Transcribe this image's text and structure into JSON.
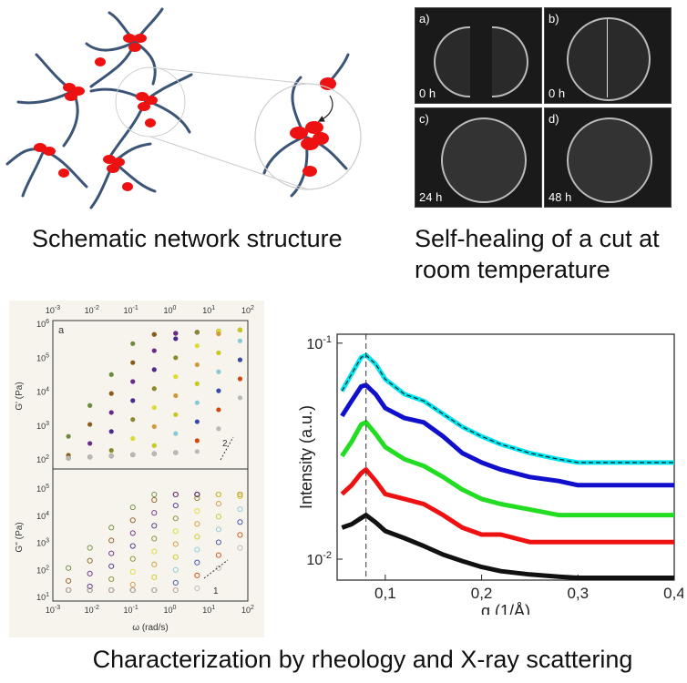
{
  "captions": {
    "schematic": "Schematic network structure",
    "self_healing": "Self-healing of a cut at room temperature",
    "characterization": "Characterization by rheology and X-ray scattering"
  },
  "photos": [
    {
      "panel": "a)",
      "time": "0 h"
    },
    {
      "panel": "b)",
      "time": "0 h"
    },
    {
      "panel": "c)",
      "time": "24 h"
    },
    {
      "panel": "d)",
      "time": "48 h"
    }
  ],
  "colors": {
    "polymer": "#3c5577",
    "sticker": "#ee1111"
  },
  "rheology": {
    "panel_label": "a",
    "top_ylabel": "G' (Pa)",
    "bottom_ylabel": "G'' (Pa)",
    "xlabel": "ω (rad/s)",
    "x_ticks": [
      "10-3",
      "10-2",
      "10-1",
      "100",
      "101",
      "102"
    ],
    "top_y_ticks": [
      "102",
      "103",
      "104",
      "105",
      "106"
    ],
    "bottom_y_ticks": [
      "101",
      "102",
      "103",
      "104",
      "105"
    ],
    "slope_top": "2",
    "slope_bottom": "1"
  },
  "chart_data": {
    "type": "line",
    "xlabel": "q (1/Å)",
    "ylabel": "Intensity (a.u.)",
    "xlim": [
      0.05,
      0.4
    ],
    "ylim": [
      0.008,
      0.11
    ],
    "yscale": "log",
    "x_ticks": [
      "0,1",
      "0,2",
      "0,3",
      "0,4"
    ],
    "y_ticks": [
      "10-1",
      "10-2"
    ],
    "peak_line_q": 0.08,
    "x": [
      0.055,
      0.065,
      0.075,
      0.08,
      0.09,
      0.1,
      0.12,
      0.14,
      0.16,
      0.18,
      0.2,
      0.22,
      0.25,
      0.28,
      0.3,
      0.32,
      0.35,
      0.38,
      0.4
    ],
    "series": [
      {
        "color": "#00e5f0",
        "values": [
          0.06,
          0.072,
          0.086,
          0.088,
          0.08,
          0.068,
          0.058,
          0.054,
          0.047,
          0.041,
          0.037,
          0.034,
          0.031,
          0.029,
          0.028,
          0.028,
          0.028,
          0.028,
          0.028
        ]
      },
      {
        "color": "#1010cc",
        "values": [
          0.046,
          0.054,
          0.063,
          0.064,
          0.058,
          0.05,
          0.045,
          0.043,
          0.037,
          0.031,
          0.028,
          0.026,
          0.024,
          0.023,
          0.022,
          0.022,
          0.022,
          0.022,
          0.022
        ]
      },
      {
        "color": "#22dd22",
        "values": [
          0.03,
          0.035,
          0.042,
          0.043,
          0.038,
          0.033,
          0.029,
          0.027,
          0.024,
          0.021,
          0.019,
          0.018,
          0.017,
          0.016,
          0.016,
          0.016,
          0.016,
          0.016,
          0.016
        ]
      },
      {
        "color": "#ee1111",
        "values": [
          0.02,
          0.022,
          0.025,
          0.026,
          0.023,
          0.02,
          0.019,
          0.018,
          0.016,
          0.014,
          0.013,
          0.013,
          0.012,
          0.012,
          0.012,
          0.012,
          0.012,
          0.012,
          0.012
        ]
      },
      {
        "color": "#111111",
        "values": [
          0.014,
          0.0145,
          0.0155,
          0.016,
          0.0148,
          0.0135,
          0.0125,
          0.0115,
          0.0105,
          0.0098,
          0.0092,
          0.0088,
          0.0085,
          0.0083,
          0.0082,
          0.0082,
          0.0082,
          0.0082,
          0.0082
        ]
      }
    ]
  }
}
